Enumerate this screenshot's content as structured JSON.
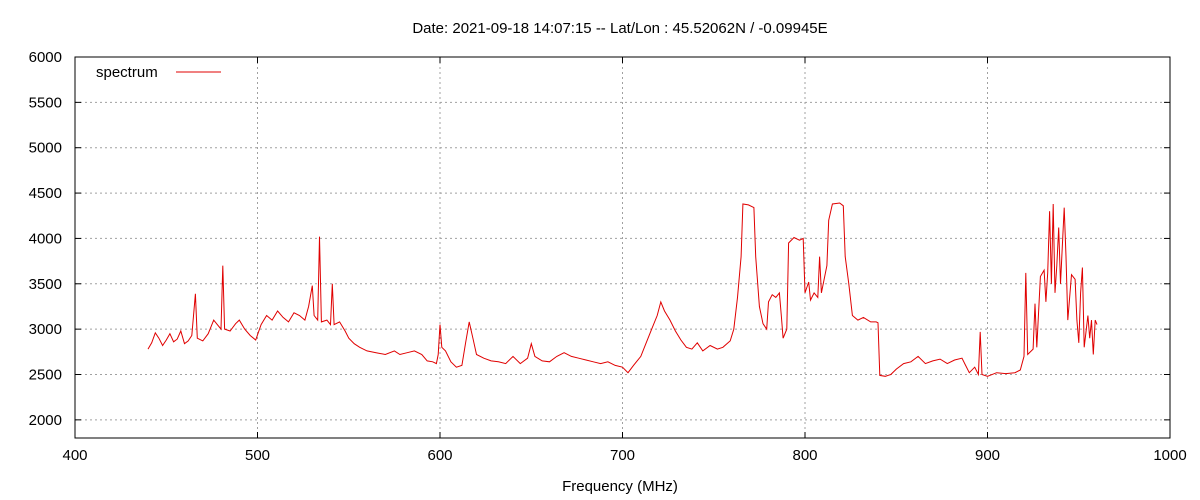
{
  "chart_data": {
    "type": "line",
    "title": "Date: 2021-09-18 14:07:15  --  Lat/Lon : 45.52062N / -0.09945E",
    "xlabel": "Frequency (MHz)",
    "ylabel": "",
    "xlim": [
      400,
      1000
    ],
    "ylim": [
      1800,
      6000
    ],
    "xticks": [
      400,
      500,
      600,
      700,
      800,
      900,
      1000
    ],
    "yticks": [
      2000,
      2500,
      3000,
      3500,
      4000,
      4500,
      5000,
      5500,
      6000
    ],
    "grid": true,
    "legend_position": "top-left",
    "series": [
      {
        "name": "spectrum",
        "color": "#e00000",
        "points": [
          [
            440,
            2780
          ],
          [
            442,
            2850
          ],
          [
            444,
            2960
          ],
          [
            446,
            2900
          ],
          [
            448,
            2820
          ],
          [
            450,
            2880
          ],
          [
            452,
            2950
          ],
          [
            454,
            2860
          ],
          [
            456,
            2890
          ],
          [
            458,
            2980
          ],
          [
            460,
            2840
          ],
          [
            462,
            2870
          ],
          [
            464,
            2930
          ],
          [
            466,
            3390
          ],
          [
            467,
            2900
          ],
          [
            470,
            2870
          ],
          [
            473,
            2950
          ],
          [
            476,
            3100
          ],
          [
            478,
            3050
          ],
          [
            480,
            3000
          ],
          [
            481,
            3700
          ],
          [
            482,
            3000
          ],
          [
            485,
            2980
          ],
          [
            488,
            3060
          ],
          [
            490,
            3100
          ],
          [
            493,
            3000
          ],
          [
            496,
            2930
          ],
          [
            499,
            2880
          ],
          [
            502,
            3050
          ],
          [
            505,
            3150
          ],
          [
            508,
            3100
          ],
          [
            511,
            3200
          ],
          [
            514,
            3130
          ],
          [
            517,
            3080
          ],
          [
            520,
            3180
          ],
          [
            523,
            3150
          ],
          [
            526,
            3100
          ],
          [
            528,
            3250
          ],
          [
            530,
            3480
          ],
          [
            531,
            3150
          ],
          [
            533,
            3100
          ],
          [
            534,
            4020
          ],
          [
            535,
            3080
          ],
          [
            538,
            3100
          ],
          [
            540,
            3050
          ],
          [
            541,
            3500
          ],
          [
            542,
            3050
          ],
          [
            545,
            3080
          ],
          [
            548,
            2980
          ],
          [
            550,
            2900
          ],
          [
            553,
            2840
          ],
          [
            556,
            2800
          ],
          [
            560,
            2760
          ],
          [
            565,
            2740
          ],
          [
            570,
            2720
          ],
          [
            575,
            2760
          ],
          [
            578,
            2720
          ],
          [
            582,
            2740
          ],
          [
            586,
            2760
          ],
          [
            590,
            2720
          ],
          [
            593,
            2650
          ],
          [
            596,
            2640
          ],
          [
            598,
            2620
          ],
          [
            599,
            2720
          ],
          [
            600,
            3050
          ],
          [
            601,
            2800
          ],
          [
            603,
            2760
          ],
          [
            606,
            2640
          ],
          [
            609,
            2580
          ],
          [
            612,
            2600
          ],
          [
            614,
            2850
          ],
          [
            616,
            3080
          ],
          [
            618,
            2900
          ],
          [
            620,
            2720
          ],
          [
            624,
            2680
          ],
          [
            628,
            2650
          ],
          [
            632,
            2640
          ],
          [
            636,
            2620
          ],
          [
            640,
            2700
          ],
          [
            644,
            2620
          ],
          [
            648,
            2680
          ],
          [
            650,
            2840
          ],
          [
            652,
            2700
          ],
          [
            656,
            2650
          ],
          [
            660,
            2640
          ],
          [
            664,
            2700
          ],
          [
            668,
            2740
          ],
          [
            672,
            2700
          ],
          [
            676,
            2680
          ],
          [
            680,
            2660
          ],
          [
            684,
            2640
          ],
          [
            688,
            2620
          ],
          [
            692,
            2640
          ],
          [
            696,
            2600
          ],
          [
            700,
            2580
          ],
          [
            703,
            2520
          ],
          [
            706,
            2600
          ],
          [
            710,
            2700
          ],
          [
            713,
            2850
          ],
          [
            716,
            3000
          ],
          [
            719,
            3150
          ],
          [
            721,
            3300
          ],
          [
            723,
            3200
          ],
          [
            726,
            3100
          ],
          [
            729,
            2980
          ],
          [
            732,
            2880
          ],
          [
            735,
            2800
          ],
          [
            738,
            2780
          ],
          [
            741,
            2850
          ],
          [
            744,
            2760
          ],
          [
            748,
            2820
          ],
          [
            752,
            2780
          ],
          [
            755,
            2800
          ],
          [
            759,
            2870
          ],
          [
            761,
            3000
          ],
          [
            763,
            3350
          ],
          [
            765,
            3800
          ],
          [
            766,
            4380
          ],
          [
            769,
            4370
          ],
          [
            772,
            4340
          ],
          [
            773,
            3800
          ],
          [
            775,
            3250
          ],
          [
            777,
            3060
          ],
          [
            779,
            3000
          ],
          [
            780,
            3300
          ],
          [
            782,
            3380
          ],
          [
            784,
            3350
          ],
          [
            786,
            3400
          ],
          [
            787,
            3150
          ],
          [
            788,
            2900
          ],
          [
            790,
            3000
          ],
          [
            791,
            3950
          ],
          [
            794,
            4010
          ],
          [
            797,
            3980
          ],
          [
            799,
            4000
          ],
          [
            800,
            3400
          ],
          [
            802,
            3520
          ],
          [
            803,
            3320
          ],
          [
            805,
            3400
          ],
          [
            807,
            3350
          ],
          [
            808,
            3800
          ],
          [
            809,
            3400
          ],
          [
            812,
            3700
          ],
          [
            813,
            4200
          ],
          [
            815,
            4380
          ],
          [
            819,
            4390
          ],
          [
            821,
            4360
          ],
          [
            822,
            3800
          ],
          [
            824,
            3500
          ],
          [
            826,
            3150
          ],
          [
            829,
            3100
          ],
          [
            832,
            3130
          ],
          [
            836,
            3080
          ],
          [
            839,
            3080
          ],
          [
            840,
            3070
          ],
          [
            841,
            2490
          ],
          [
            844,
            2480
          ],
          [
            847,
            2500
          ],
          [
            850,
            2560
          ],
          [
            854,
            2620
          ],
          [
            858,
            2640
          ],
          [
            862,
            2700
          ],
          [
            866,
            2620
          ],
          [
            870,
            2650
          ],
          [
            874,
            2670
          ],
          [
            878,
            2620
          ],
          [
            882,
            2660
          ],
          [
            886,
            2680
          ],
          [
            888,
            2600
          ],
          [
            890,
            2520
          ],
          [
            893,
            2580
          ],
          [
            895,
            2500
          ],
          [
            896,
            2970
          ],
          [
            897,
            2500
          ],
          [
            900,
            2480
          ],
          [
            905,
            2520
          ],
          [
            910,
            2510
          ],
          [
            915,
            2520
          ],
          [
            918,
            2550
          ],
          [
            920,
            2700
          ],
          [
            921,
            3620
          ],
          [
            922,
            2720
          ],
          [
            925,
            2780
          ],
          [
            926,
            3280
          ],
          [
            927,
            2800
          ],
          [
            929,
            3580
          ],
          [
            931,
            3650
          ],
          [
            932,
            3300
          ],
          [
            933,
            3620
          ],
          [
            934,
            4300
          ],
          [
            935,
            3500
          ],
          [
            936,
            4380
          ],
          [
            937,
            3400
          ],
          [
            938,
            3700
          ],
          [
            939,
            4120
          ],
          [
            940,
            3500
          ],
          [
            942,
            4340
          ],
          [
            943,
            3800
          ],
          [
            944,
            3100
          ],
          [
            946,
            3600
          ],
          [
            948,
            3550
          ],
          [
            949,
            3100
          ],
          [
            950,
            2850
          ],
          [
            951,
            3400
          ],
          [
            952,
            3680
          ],
          [
            953,
            2800
          ],
          [
            955,
            3150
          ],
          [
            956,
            2900
          ],
          [
            957,
            3100
          ],
          [
            958,
            2720
          ],
          [
            959,
            3100
          ],
          [
            960,
            3050
          ]
        ]
      }
    ]
  }
}
